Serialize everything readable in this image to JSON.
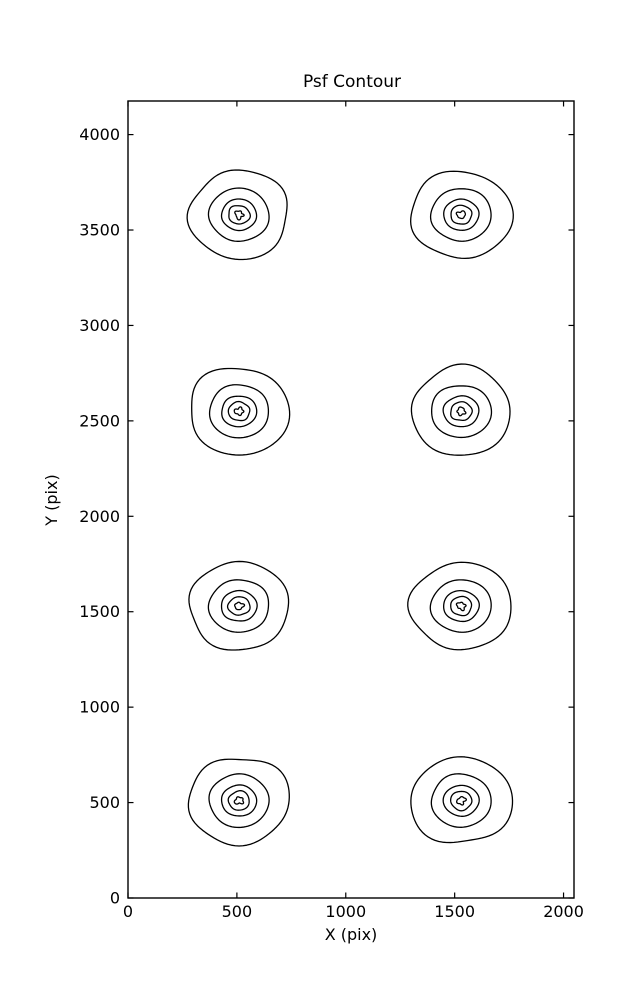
{
  "figure": {
    "background": "#ffffff",
    "line_color": "#000000"
  },
  "chart_data": {
    "type": "contour",
    "title": "Psf Contour",
    "xlabel": "X (pix)",
    "ylabel": "Y (pix)",
    "xlim": [
      0,
      2048
    ],
    "ylim": [
      0,
      4176
    ],
    "xticks": [
      0,
      500,
      1000,
      1500,
      2000
    ],
    "yticks": [
      0,
      500,
      1000,
      1500,
      2000,
      2500,
      3000,
      3500,
      4000
    ],
    "grid": false,
    "legend_position": null,
    "sources": [
      {
        "x": 510,
        "y": 510
      },
      {
        "x": 1530,
        "y": 510
      },
      {
        "x": 510,
        "y": 1530
      },
      {
        "x": 1530,
        "y": 1530
      },
      {
        "x": 510,
        "y": 2550
      },
      {
        "x": 1530,
        "y": 2550
      },
      {
        "x": 510,
        "y": 3580
      },
      {
        "x": 1530,
        "y": 3580
      }
    ],
    "contour_radii": [
      230,
      138,
      81,
      49,
      19
    ]
  }
}
